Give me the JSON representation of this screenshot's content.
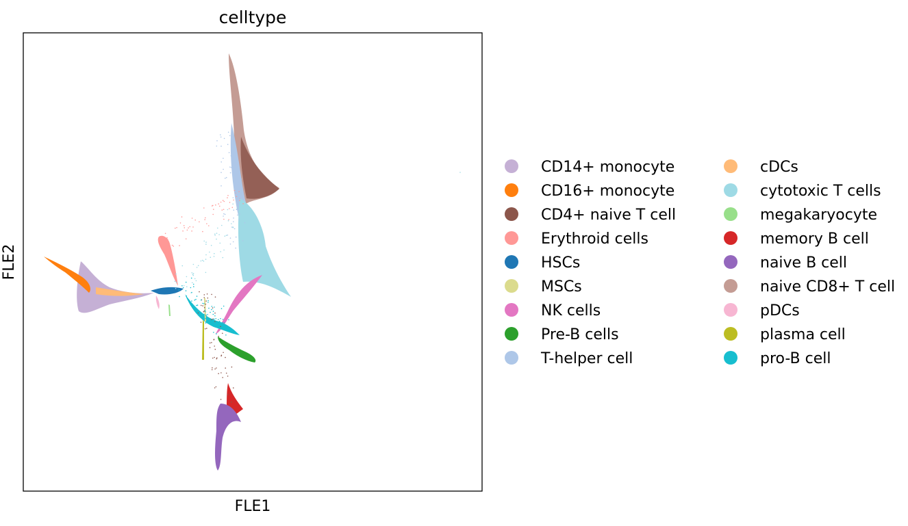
{
  "chart_data": {
    "type": "scatter",
    "title": "celltype",
    "xlabel": "FLE1",
    "ylabel": "FLE2",
    "grid": false,
    "ticks": false,
    "legend_placement": "right, outside plot, two columns",
    "series": [
      {
        "name": "CD14+ monocyte",
        "color": "#c5b0d5"
      },
      {
        "name": "CD16+ monocyte",
        "color": "#ff7f0e"
      },
      {
        "name": "CD4+ naive T cell",
        "color": "#8c564b"
      },
      {
        "name": "Erythroid cells",
        "color": "#ff9896"
      },
      {
        "name": "HSCs",
        "color": "#1f77b4"
      },
      {
        "name": "MSCs",
        "color": "#dbdb8d"
      },
      {
        "name": "NK cells",
        "color": "#e377c2"
      },
      {
        "name": "Pre-B cells",
        "color": "#2ca02c"
      },
      {
        "name": "T-helper cell",
        "color": "#aec7e8"
      },
      {
        "name": "cDCs",
        "color": "#ffbb78"
      },
      {
        "name": "cytotoxic T cells",
        "color": "#9edae5"
      },
      {
        "name": "megakaryocyte",
        "color": "#98df8a"
      },
      {
        "name": "memory B cell",
        "color": "#d62728"
      },
      {
        "name": "naive B cell",
        "color": "#9467bd"
      },
      {
        "name": "naive CD8+ T cell",
        "color": "#c49c94"
      },
      {
        "name": "pDCs",
        "color": "#f7b6d2"
      },
      {
        "name": "plasma cell",
        "color": "#bcbd22"
      },
      {
        "name": "pro-B cell",
        "color": "#17becf"
      }
    ]
  }
}
